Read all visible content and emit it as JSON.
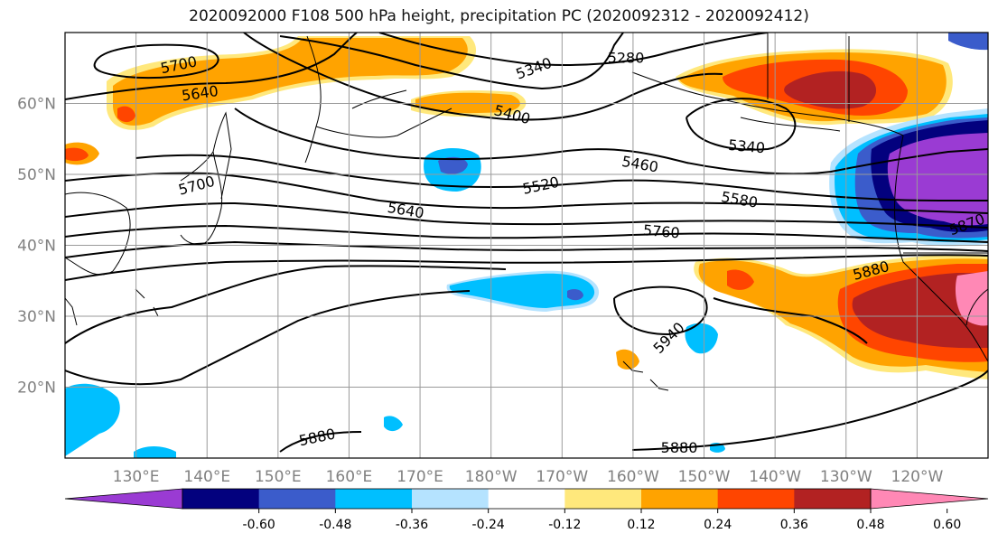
{
  "title": "2020092000 F108 500 hPa height, precipitation PC (2020092312 - 2020092412)",
  "map": {
    "lon_range": [
      120,
      250
    ],
    "lat_range": [
      10,
      70
    ],
    "lon_ticks": [
      {
        "value": 130,
        "label": "130°E"
      },
      {
        "value": 140,
        "label": "140°E"
      },
      {
        "value": 150,
        "label": "150°E"
      },
      {
        "value": 160,
        "label": "160°E"
      },
      {
        "value": 170,
        "label": "170°E"
      },
      {
        "value": 180,
        "label": "180°W"
      },
      {
        "value": 190,
        "label": "170°W"
      },
      {
        "value": 200,
        "label": "160°W"
      },
      {
        "value": 210,
        "label": "150°W"
      },
      {
        "value": 220,
        "label": "140°W"
      },
      {
        "value": 230,
        "label": "130°W"
      },
      {
        "value": 240,
        "label": "120°W"
      }
    ],
    "lat_ticks": [
      {
        "value": 60,
        "label": "60°N"
      },
      {
        "value": 50,
        "label": "50°N"
      },
      {
        "value": 40,
        "label": "40°N"
      },
      {
        "value": 30,
        "label": "30°N"
      },
      {
        "value": 20,
        "label": "20°N"
      }
    ],
    "contour_labels": [
      {
        "text": "5700",
        "lon": 136,
        "lat": 65.5,
        "rot": -12
      },
      {
        "text": "5640",
        "lon": 139,
        "lat": 61.5,
        "rot": -8
      },
      {
        "text": "5340",
        "lon": 186,
        "lat": 65,
        "rot": -20
      },
      {
        "text": "5280",
        "lon": 199,
        "lat": 66.5,
        "rot": 0
      },
      {
        "text": "5400",
        "lon": 183,
        "lat": 58.5,
        "rot": 15
      },
      {
        "text": "5340",
        "lon": 216,
        "lat": 54,
        "rot": 5
      },
      {
        "text": "5460",
        "lon": 201,
        "lat": 51.5,
        "rot": 10
      },
      {
        "text": "5700",
        "lon": 138.5,
        "lat": 48.5,
        "rot": -15
      },
      {
        "text": "5520",
        "lon": 187,
        "lat": 48.5,
        "rot": -12
      },
      {
        "text": "5580",
        "lon": 215,
        "lat": 46.5,
        "rot": 10
      },
      {
        "text": "5640",
        "lon": 168,
        "lat": 45,
        "rot": 10
      },
      {
        "text": "5760",
        "lon": 204,
        "lat": 42,
        "rot": 5
      },
      {
        "text": "5880",
        "lon": 233.5,
        "lat": 36.5,
        "rot": -15
      },
      {
        "text": "5870",
        "lon": 247,
        "lat": 43,
        "rot": -20
      },
      {
        "text": "5940",
        "lon": 205,
        "lat": 27,
        "rot": -45
      },
      {
        "text": "5880",
        "lon": 155.5,
        "lat": 13,
        "rot": -12
      },
      {
        "text": "5880",
        "lon": 206.5,
        "lat": 11.5,
        "rot": 0
      }
    ]
  },
  "colorbar": {
    "colors": [
      "#9a3bd3",
      "#03017e",
      "#3b5ccb",
      "#00bfff",
      "#b5e3ff",
      "#ffffff",
      "#ffe87c",
      "#ffa300",
      "#ff4500",
      "#b22222",
      "#ff88b5"
    ],
    "tick_labels": [
      "-0.60",
      "-0.48",
      "-0.36",
      "-0.24",
      "-0.12",
      "0.12",
      "0.24",
      "0.36",
      "0.48",
      "0.60"
    ]
  }
}
